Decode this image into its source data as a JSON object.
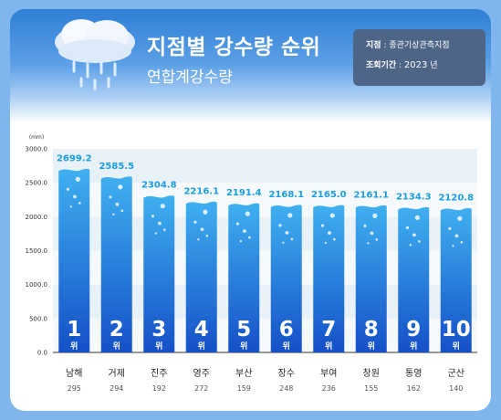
{
  "header": {
    "title": "지점별 강수량 순위",
    "subtitle": "연합계강수량"
  },
  "info": {
    "station_label": "지점",
    "station_value": "종관기상관측지점",
    "period_label": "조회기간",
    "period_year": "2023",
    "period_unit": "년"
  },
  "chart_data": {
    "type": "bar",
    "title": "지점별 강수량 순위",
    "subtitle": "연합계강수량",
    "ylabel": "(mm)",
    "ylim": [
      0,
      3000
    ],
    "yticks": [
      "0.0",
      "500.0",
      "1000.0",
      "1500.0",
      "2000.0",
      "2500.0",
      "3000.0"
    ],
    "categories": [
      "남해",
      "거제",
      "진주",
      "영주",
      "부산",
      "장수",
      "부여",
      "창원",
      "통영",
      "군산"
    ],
    "values": [
      2699.2,
      2585.5,
      2304.8,
      2216.1,
      2191.4,
      2168.1,
      2165.0,
      2161.1,
      2134.3,
      2120.8
    ],
    "value_labels": [
      "2699.2",
      "2585.5",
      "2304.8",
      "2216.1",
      "2191.4",
      "2168.1",
      "2165.0",
      "2161.1",
      "2134.3",
      "2120.8"
    ],
    "station_codes": [
      "295",
      "294",
      "192",
      "272",
      "159",
      "248",
      "236",
      "155",
      "162",
      "140"
    ],
    "ranks": [
      "1",
      "2",
      "3",
      "4",
      "5",
      "6",
      "7",
      "8",
      "9",
      "10"
    ],
    "rank_suffix": "위",
    "bar_color_top": "#3fb0f0",
    "bar_color_bottom": "#1550c8",
    "grid": "alternating horizontal bands",
    "legend": "none"
  }
}
